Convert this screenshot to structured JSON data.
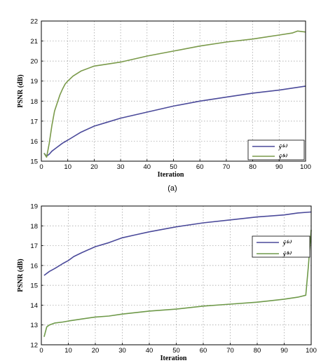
{
  "chart_data": [
    {
      "type": "line",
      "panel_label": "(a)",
      "xlabel": "Iteration",
      "ylabel": "PSNR (dB)",
      "xlim": [
        0,
        100
      ],
      "ylim": [
        15,
        22
      ],
      "xticks": [
        0,
        10,
        20,
        30,
        40,
        50,
        60,
        70,
        80,
        90,
        100
      ],
      "yticks": [
        15,
        16,
        17,
        18,
        19,
        20,
        21,
        22
      ],
      "grid": true,
      "legend_position": "bottom-right",
      "series": [
        {
          "name": "ŷ⁽ᵃ⁾",
          "color": "#4b4a9a",
          "x": [
            1,
            2,
            3,
            4,
            5,
            6,
            8,
            10,
            15,
            20,
            25,
            30,
            40,
            50,
            60,
            70,
            80,
            90,
            100
          ],
          "y": [
            15.4,
            15.25,
            15.35,
            15.5,
            15.6,
            15.7,
            15.9,
            16.05,
            16.45,
            16.75,
            16.95,
            17.15,
            17.45,
            17.75,
            18.0,
            18.2,
            18.4,
            18.55,
            18.75
          ]
        },
        {
          "name": "ŷ⁽ᵇ⁾",
          "color": "#7a9a4a",
          "x": [
            1,
            2,
            3,
            4,
            5,
            6,
            7,
            8,
            9,
            10,
            12,
            15,
            20,
            25,
            30,
            40,
            50,
            60,
            70,
            80,
            90,
            95,
            97,
            100
          ],
          "y": [
            15.4,
            15.2,
            15.9,
            16.8,
            17.5,
            17.9,
            18.3,
            18.6,
            18.85,
            19.0,
            19.25,
            19.5,
            19.75,
            19.85,
            19.95,
            20.25,
            20.5,
            20.75,
            20.95,
            21.1,
            21.3,
            21.4,
            21.5,
            21.45
          ]
        }
      ]
    },
    {
      "type": "line",
      "xlabel": "Iteration",
      "ylabel": "PSNR (dB)",
      "xlim": [
        0,
        100
      ],
      "ylim": [
        12,
        19
      ],
      "xticks": [
        0,
        10,
        20,
        30,
        40,
        50,
        60,
        70,
        80,
        90,
        100
      ],
      "yticks": [
        12,
        13,
        14,
        15,
        16,
        17,
        18,
        19
      ],
      "grid": true,
      "legend_position": "top-right",
      "series": [
        {
          "name": "ŷ⁽ᵃ⁾",
          "color": "#4b4a9a",
          "x": [
            1,
            3,
            5,
            8,
            10,
            12,
            15,
            20,
            25,
            30,
            35,
            40,
            50,
            60,
            70,
            80,
            90,
            95,
            100
          ],
          "y": [
            15.5,
            15.7,
            15.85,
            16.1,
            16.25,
            16.45,
            16.65,
            16.95,
            17.15,
            17.4,
            17.55,
            17.7,
            17.95,
            18.15,
            18.3,
            18.45,
            18.55,
            18.65,
            18.7
          ]
        },
        {
          "name": "ŷ⁽ᵇ⁾",
          "color": "#6f9a4a",
          "x": [
            1,
            2,
            3,
            5,
            8,
            10,
            15,
            20,
            25,
            30,
            40,
            50,
            60,
            70,
            80,
            90,
            95,
            98,
            99,
            100
          ],
          "y": [
            12.4,
            12.9,
            13.0,
            13.1,
            13.15,
            13.2,
            13.3,
            13.4,
            13.45,
            13.55,
            13.7,
            13.8,
            13.95,
            14.05,
            14.15,
            14.3,
            14.4,
            14.5,
            16.0,
            17.8
          ]
        }
      ]
    }
  ]
}
